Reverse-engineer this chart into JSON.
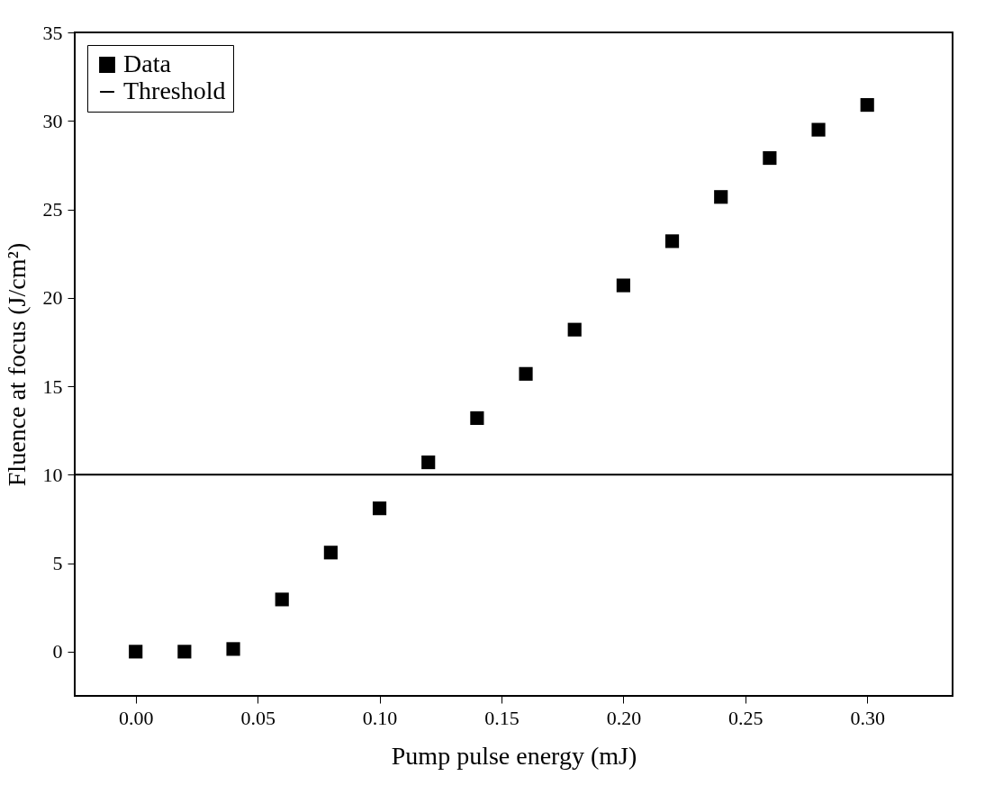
{
  "chart_data": {
    "type": "scatter",
    "xlabel": "Pump pulse energy (mJ)",
    "ylabel": "Fluence at focus (J/cm²)",
    "x": [
      0,
      0.02,
      0.04,
      0.06,
      0.08,
      0.1,
      0.12,
      0.14,
      0.16,
      0.18,
      0.2,
      0.22,
      0.24,
      0.26,
      0.28,
      0.3
    ],
    "series": [
      {
        "name": "Data",
        "color": "#000000",
        "values": [
          0,
          0,
          0.15,
          2.95,
          5.6,
          8.1,
          10.7,
          13.2,
          15.7,
          18.2,
          20.7,
          23.2,
          25.7,
          27.9,
          29.5,
          30.9
        ]
      }
    ],
    "ref_lines": [
      {
        "axis": "y",
        "value": 10,
        "label": "Threshold",
        "color": "#000000"
      }
    ],
    "xlim": [
      -0.025,
      0.335
    ],
    "ylim": [
      -2.5,
      35
    ],
    "xticks": [
      {
        "value": 0,
        "label": "0.00"
      },
      {
        "value": 0.05,
        "label": "0.05"
      },
      {
        "value": 0.1,
        "label": "0.10"
      },
      {
        "value": 0.15,
        "label": "0.15"
      },
      {
        "value": 0.2,
        "label": "0.20"
      },
      {
        "value": 0.25,
        "label": "0.25"
      },
      {
        "value": 0.3,
        "label": "0.30"
      }
    ],
    "yticks": [
      0,
      5,
      10,
      15,
      20,
      25,
      30,
      35
    ],
    "marker": "square",
    "legend": "top left",
    "grid": false
  }
}
